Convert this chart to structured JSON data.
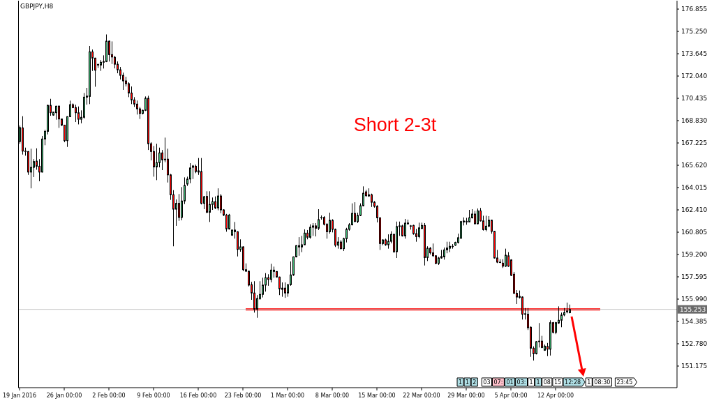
{
  "chart_data": {
    "type": "candlestick",
    "title": "GBPJPY,H8",
    "categories": [
      "19 Jan 2016",
      null,
      null,
      null,
      null,
      null,
      null,
      null,
      null,
      null,
      null,
      null,
      null,
      null,
      null,
      null,
      "26 Jan 00:00",
      null,
      null,
      null,
      null,
      null,
      null,
      null,
      null,
      null,
      null,
      null,
      null,
      null,
      null,
      null,
      "2 Feb 00:00",
      null,
      null,
      null,
      null,
      null,
      null,
      null,
      null,
      null,
      null,
      null,
      null,
      null,
      null,
      null,
      "9 Feb 00:00",
      null,
      null,
      null,
      null,
      null,
      null,
      null,
      null,
      null,
      null,
      null,
      null,
      null,
      null,
      null,
      "16 Feb 00:00",
      null,
      null,
      null,
      null,
      null,
      null,
      null,
      null,
      null,
      null,
      null,
      null,
      null,
      null,
      null,
      "23 Feb 00:00",
      null,
      null,
      null,
      null,
      null,
      null,
      null,
      null,
      null,
      null,
      null,
      null,
      null,
      null,
      null,
      "1 Mar 00:00",
      null,
      null,
      null,
      null,
      null,
      null,
      null,
      null,
      null,
      null,
      null,
      null,
      null,
      null,
      null,
      "8 Mar 00:00",
      null,
      null,
      null,
      null,
      null,
      null,
      null,
      null,
      null,
      null,
      null,
      null,
      null,
      null,
      null,
      "15 Mar 00:00",
      null,
      null,
      null,
      null,
      null,
      null,
      null,
      null,
      null,
      null,
      null,
      null,
      null,
      null,
      null,
      "22 Mar 00:00",
      null,
      null,
      null,
      null,
      null,
      null,
      null,
      null,
      null,
      null,
      null,
      null,
      null,
      null,
      null,
      "29 Mar 00:00",
      null,
      null,
      null,
      null,
      null,
      null,
      null,
      null,
      null,
      null,
      null,
      null,
      null,
      null,
      null,
      "5 Apr 00:00",
      null,
      null,
      null,
      null,
      null,
      null,
      null,
      null,
      null,
      null,
      null,
      null,
      null,
      null,
      null,
      "12 Apr 00:00",
      null,
      null,
      null,
      null,
      null,
      null,
      null,
      null,
      null,
      null,
      null,
      null,
      null,
      null,
      null,
      null,
      null,
      null,
      null,
      null,
      null,
      null,
      null,
      null,
      null,
      null,
      null,
      null,
      null,
      null,
      null,
      null,
      null,
      null,
      null,
      null,
      null,
      null,
      null,
      null,
      null,
      null,
      null
    ],
    "ohlc": [
      [
        167.33,
        168.48,
        167.17,
        168.33
      ],
      [
        168.31,
        169.15,
        166.39,
        166.64
      ],
      [
        166.64,
        166.89,
        166.31,
        166.61
      ],
      [
        166.61,
        166.64,
        164.93,
        165.13
      ],
      [
        165.13,
        166.81,
        163.96,
        165.47
      ],
      [
        165.47,
        166.06,
        164.77,
        165.89
      ],
      [
        165.92,
        166.84,
        165.3,
        165.55
      ],
      [
        165.55,
        166.06,
        164.47,
        165.13
      ],
      [
        165.13,
        167.73,
        165.1,
        167.51
      ],
      [
        167.51,
        168.18,
        167.06,
        168.06
      ],
      [
        168.06,
        169.98,
        167.84,
        169.93
      ],
      [
        169.93,
        170.4,
        169.18,
        169.4
      ],
      [
        169.23,
        169.48,
        169.18,
        169.45
      ],
      [
        169.4,
        169.9,
        168.9,
        169.87
      ],
      [
        169.87,
        169.93,
        168.31,
        168.95
      ],
      [
        168.95,
        168.98,
        168.44,
        168.51
      ],
      [
        168.51,
        168.53,
        167.28,
        167.39
      ],
      [
        167.39,
        169.14,
        166.94,
        169.12
      ],
      [
        169.12,
        170.27,
        169.08,
        169.98
      ],
      [
        169.98,
        170.07,
        169.73,
        169.77
      ],
      [
        169.77,
        169.98,
        168.73,
        169.4
      ],
      [
        169.4,
        169.85,
        168.56,
        168.93
      ],
      [
        168.93,
        169.57,
        168.64,
        169.07
      ],
      [
        169.07,
        170.82,
        168.98,
        170.52
      ],
      [
        170.52,
        171.19,
        169.98,
        170.6
      ],
      [
        170.57,
        174.2,
        170.02,
        173.78
      ],
      [
        173.78,
        173.95,
        172.41,
        173.33
      ],
      [
        173.33,
        173.36,
        171.27,
        172.46
      ],
      [
        172.88,
        172.91,
        172.63,
        172.83
      ],
      [
        172.83,
        173.19,
        172.41,
        173.03
      ],
      [
        173.03,
        173.53,
        172.58,
        173.08
      ],
      [
        173.08,
        175.03,
        173.04,
        174.55
      ],
      [
        174.55,
        174.6,
        173.08,
        173.58
      ],
      [
        173.58,
        174.53,
        172.91,
        173.41
      ],
      [
        173.39,
        173.49,
        172.59,
        172.89
      ],
      [
        172.89,
        173.09,
        172.24,
        172.49
      ],
      [
        172.49,
        172.69,
        171.79,
        172.09
      ],
      [
        172.09,
        172.29,
        171.04,
        171.69
      ],
      [
        171.69,
        171.99,
        171.29,
        171.49
      ],
      [
        171.49,
        171.59,
        170.52,
        170.82
      ],
      [
        170.82,
        171.29,
        170.02,
        170.32
      ],
      [
        170.32,
        170.52,
        169.82,
        170.02
      ],
      [
        170.02,
        170.28,
        169.27,
        169.68
      ],
      [
        169.68,
        169.82,
        168.95,
        169.35
      ],
      [
        169.35,
        169.62,
        169.28,
        169.57
      ],
      [
        169.57,
        170.57,
        169.52,
        170.44
      ],
      [
        170.44,
        170.62,
        166.72,
        167.17
      ],
      [
        167.17,
        167.28,
        165.97,
        166.61
      ],
      [
        166.61,
        167.01,
        164.8,
        165.5
      ],
      [
        165.5,
        167.17,
        164.55,
        165.81
      ],
      [
        165.81,
        166.89,
        165.47,
        166.51
      ],
      [
        166.51,
        166.72,
        165.27,
        166.01
      ],
      [
        166.06,
        167.61,
        165.84,
        166.01
      ],
      [
        166.06,
        166.81,
        164.38,
        164.93
      ],
      [
        164.93,
        165.0,
        163.13,
        163.5
      ],
      [
        163.5,
        163.83,
        159.79,
        162.46
      ],
      [
        162.46,
        163.16,
        161.26,
        162.88
      ],
      [
        162.88,
        163.55,
        161.62,
        161.87
      ],
      [
        161.87,
        164.05,
        161.66,
        163.05
      ],
      [
        163.05,
        164.75,
        162.83,
        164.17
      ],
      [
        164.27,
        164.8,
        164.13,
        164.63
      ],
      [
        164.63,
        165.77,
        164.33,
        165.43
      ],
      [
        165.47,
        165.64,
        164.63,
        165.57
      ],
      [
        165.55,
        165.67,
        165.05,
        165.17
      ],
      [
        165.22,
        166.14,
        164.93,
        165.13
      ],
      [
        165.17,
        166.14,
        162.8,
        162.88
      ],
      [
        162.88,
        163.41,
        162.46,
        163.36
      ],
      [
        163.38,
        163.75,
        162.17,
        162.24
      ],
      [
        162.24,
        163.75,
        161.54,
        162.8
      ],
      [
        162.8,
        163.3,
        162.41,
        163.0
      ],
      [
        163.0,
        163.38,
        162.46,
        162.55
      ],
      [
        162.55,
        163.96,
        162.38,
        163.41
      ],
      [
        163.41,
        163.55,
        162.17,
        162.41
      ],
      [
        162.41,
        162.46,
        161.96,
        162.04
      ],
      [
        162.04,
        162.12,
        160.84,
        161.04
      ],
      [
        161.04,
        162.12,
        160.99,
        162.04
      ],
      [
        160.59,
        160.99,
        160.54,
        160.96
      ],
      [
        160.96,
        161.54,
        160.34,
        160.84
      ],
      [
        160.84,
        160.87,
        159.06,
        159.57
      ],
      [
        159.57,
        160.29,
        159.4,
        159.75
      ],
      [
        159.75,
        159.79,
        158.0,
        158.11
      ],
      [
        158.11,
        158.56,
        157.95,
        158.0
      ],
      [
        158.0,
        158.03,
        156.9,
        157.0
      ],
      [
        157.03,
        157.23,
        155.94,
        156.43
      ],
      [
        156.43,
        157.28,
        155.02,
        155.27
      ],
      [
        155.27,
        156.28,
        154.65,
        156.03
      ],
      [
        156.03,
        157.28,
        155.94,
        156.33
      ],
      [
        156.33,
        157.53,
        156.11,
        157.0
      ],
      [
        157.0,
        157.86,
        156.53,
        157.53
      ],
      [
        157.53,
        157.78,
        156.95,
        157.41
      ],
      [
        157.41,
        158.53,
        157.19,
        158.08
      ],
      [
        158.08,
        158.33,
        157.53,
        157.98
      ],
      [
        157.98,
        158.0,
        157.53,
        157.58
      ],
      [
        157.58,
        157.61,
        156.28,
        156.73
      ],
      [
        156.78,
        157.19,
        156.16,
        156.69
      ],
      [
        156.78,
        157.19,
        156.08,
        156.43
      ],
      [
        156.43,
        157.06,
        156.16,
        157.03
      ],
      [
        157.03,
        158.7,
        156.95,
        157.73
      ],
      [
        157.73,
        159.06,
        157.66,
        159.03
      ],
      [
        159.03,
        159.87,
        158.99,
        159.84
      ],
      [
        159.84,
        160.45,
        159.11,
        159.74
      ],
      [
        159.74,
        160.54,
        159.37,
        159.9
      ],
      [
        159.9,
        161.01,
        159.87,
        160.74
      ],
      [
        160.74,
        160.96,
        160.29,
        160.44
      ],
      [
        160.44,
        161.37,
        160.34,
        161.16
      ],
      [
        161.16,
        161.46,
        160.54,
        161.26
      ],
      [
        161.26,
        161.46,
        160.5,
        161.09
      ],
      [
        161.09,
        162.46,
        160.96,
        161.71
      ],
      [
        161.87,
        162.01,
        161.71,
        161.87
      ],
      [
        161.87,
        161.96,
        161.29,
        161.37
      ],
      [
        161.37,
        161.46,
        160.34,
        160.84
      ],
      [
        160.84,
        162.21,
        160.7,
        161.66
      ],
      [
        161.66,
        161.74,
        160.79,
        161.01
      ],
      [
        161.01,
        161.07,
        159.74,
        159.87
      ],
      [
        159.87,
        160.45,
        159.62,
        160.1
      ],
      [
        160.1,
        160.24,
        159.57,
        159.62
      ],
      [
        159.62,
        160.41,
        159.45,
        160.34
      ],
      [
        160.34,
        161.12,
        160.07,
        161.01
      ],
      [
        161.01,
        161.46,
        160.91,
        161.34
      ],
      [
        161.34,
        162.88,
        161.29,
        162.16
      ],
      [
        162.16,
        162.96,
        161.54,
        161.57
      ],
      [
        161.57,
        162.21,
        161.46,
        162.01
      ],
      [
        162.01,
        162.88,
        161.96,
        162.71
      ],
      [
        162.71,
        164.1,
        162.66,
        163.61
      ],
      [
        163.71,
        163.85,
        163.35,
        163.43
      ],
      [
        163.5,
        163.96,
        163.35,
        163.41
      ],
      [
        163.5,
        163.58,
        162.62,
        162.96
      ],
      [
        162.96,
        163.05,
        162.57,
        162.67
      ],
      [
        162.67,
        162.75,
        161.51,
        161.84
      ],
      [
        161.84,
        161.87,
        159.53,
        159.99
      ],
      [
        159.99,
        160.29,
        159.87,
        160.25
      ],
      [
        160.25,
        160.34,
        159.82,
        159.9
      ],
      [
        159.9,
        160.65,
        159.62,
        160.15
      ],
      [
        160.15,
        160.87,
        160.0,
        160.65
      ],
      [
        160.65,
        160.68,
        159.32,
        159.4
      ],
      [
        159.4,
        161.57,
        158.95,
        161.21
      ],
      [
        161.21,
        161.57,
        160.54,
        161.26
      ],
      [
        161.26,
        161.34,
        160.49,
        160.54
      ],
      [
        160.54,
        161.76,
        160.34,
        161.46
      ],
      [
        161.41,
        161.71,
        161.34,
        161.47
      ],
      [
        161.26,
        161.32,
        160.99,
        161.24
      ],
      [
        161.29,
        161.34,
        160.62,
        160.7
      ],
      [
        160.7,
        161.04,
        160.12,
        160.49
      ],
      [
        160.49,
        161.49,
        160.37,
        161.12
      ],
      [
        161.07,
        161.49,
        161.04,
        161.29
      ],
      [
        161.29,
        161.46,
        158.41,
        158.98
      ],
      [
        158.98,
        159.79,
        158.73,
        159.65
      ],
      [
        159.65,
        159.74,
        159.2,
        159.32
      ],
      [
        159.32,
        159.99,
        159.03,
        159.11
      ],
      [
        159.11,
        159.15,
        158.5,
        158.56
      ],
      [
        158.56,
        159.03,
        158.45,
        158.95
      ],
      [
        158.95,
        159.53,
        158.9,
        159.06
      ],
      [
        159.03,
        159.7,
        158.83,
        159.53
      ],
      [
        159.53,
        160.12,
        159.29,
        159.67
      ],
      [
        159.65,
        160.12,
        159.37,
        159.79
      ],
      [
        159.79,
        159.95,
        159.62,
        159.79
      ],
      [
        159.87,
        160.12,
        159.82,
        160.07
      ],
      [
        160.07,
        160.7,
        159.99,
        160.41
      ],
      [
        160.37,
        161.62,
        160.34,
        161.57
      ],
      [
        161.54,
        161.87,
        161.29,
        161.61
      ],
      [
        161.54,
        161.84,
        161.34,
        161.59
      ],
      [
        161.54,
        162.41,
        161.51,
        161.84
      ],
      [
        161.84,
        162.46,
        161.79,
        162.11
      ],
      [
        162.11,
        162.34,
        161.37,
        161.41
      ],
      [
        161.41,
        162.51,
        161.37,
        162.34
      ],
      [
        162.34,
        162.55,
        161.57,
        161.62
      ],
      [
        161.62,
        161.99,
        160.92,
        160.99
      ],
      [
        160.99,
        161.99,
        160.87,
        161.24
      ],
      [
        161.24,
        161.96,
        161.16,
        161.67
      ],
      [
        161.67,
        161.71,
        160.7,
        160.87
      ],
      [
        160.87,
        160.9,
        158.91,
        158.95
      ],
      [
        158.95,
        159.53,
        158.58,
        158.65
      ],
      [
        158.65,
        158.86,
        158.58,
        158.63
      ],
      [
        158.58,
        158.86,
        158.23,
        158.36
      ],
      [
        158.36,
        159.62,
        158.31,
        159.15
      ],
      [
        159.11,
        159.37,
        158.31,
        158.36
      ],
      [
        158.81,
        158.86,
        157.65,
        157.7
      ],
      [
        157.78,
        157.95,
        156.36,
        156.41
      ],
      [
        156.41,
        156.64,
        155.64,
        156.14
      ],
      [
        156.19,
        156.61,
        156.03,
        156.11
      ],
      [
        156.14,
        156.19,
        154.52,
        154.9
      ],
      [
        154.9,
        155.35,
        154.52,
        154.94
      ],
      [
        154.9,
        155.35,
        153.77,
        153.93
      ],
      [
        153.97,
        154.02,
        151.84,
        152.46
      ],
      [
        152.46,
        152.59,
        151.57,
        152.06
      ],
      [
        152.06,
        152.97,
        152.01,
        152.93
      ],
      [
        152.93,
        154.27,
        152.51,
        152.97
      ],
      [
        152.97,
        153.35,
        152.46,
        152.51
      ],
      [
        152.31,
        152.72,
        152.27,
        152.61
      ],
      [
        152.59,
        152.84,
        151.89,
        152.39
      ],
      [
        152.39,
        154.47,
        151.93,
        154.3
      ],
      [
        154.3,
        154.35,
        153.52,
        153.6
      ],
      [
        153.6,
        154.35,
        153.47,
        154.3
      ],
      [
        154.27,
        155.47,
        154.2,
        154.47
      ],
      [
        154.47,
        155.02,
        153.97,
        154.85
      ],
      [
        154.85,
        155.35,
        154.76,
        155.02
      ],
      [
        155.07,
        155.74,
        154.97,
        155.14
      ],
      [
        155.02,
        155.6,
        154.97,
        155.25
      ],
      null,
      null,
      null,
      null,
      null,
      null,
      null,
      null,
      null,
      null,
      null,
      null,
      null,
      null,
      null,
      null,
      null,
      null,
      null,
      null,
      null,
      null,
      null,
      null,
      null,
      null,
      null,
      null,
      null,
      null,
      null,
      null,
      null,
      null,
      null,
      null,
      null,
      null
    ],
    "colors": [
      "#3cb371",
      "#ff0000",
      "#ff0000",
      "#ff0000",
      "#3cb371",
      "#3cb371",
      "#ff0000",
      "#ff0000",
      "#3cb371",
      "#3cb371",
      "#3cb371",
      "#ff0000",
      "#3cb371",
      "#3cb371",
      "#ff0000",
      "#ff0000",
      "#ff0000",
      "#3cb371",
      "#3cb371",
      "#ff0000",
      "#ff0000",
      "#ff0000",
      "#3cb371",
      "#3cb371",
      "#3cb371",
      "#3cb371",
      "#ff0000",
      "#ff0000",
      "#ff0000",
      "#3cb371",
      "#3cb371",
      "#3cb371",
      "#ff0000",
      "#ff0000",
      "#ff0000",
      "#ff0000",
      "#ff0000",
      "#ff0000",
      "#ff0000",
      "#ff0000",
      "#ff0000",
      "#ff0000",
      "#ff0000",
      "#ff0000",
      "#3cb371",
      "#3cb371",
      "#ff0000",
      "#ff0000",
      "#ff0000",
      "#3cb371",
      "#3cb371",
      "#ff0000",
      "#ff0000",
      "#ff0000",
      "#ff0000",
      "#ff0000",
      "#3cb371",
      "#ff0000",
      "#3cb371",
      "#3cb371",
      "#3cb371",
      "#3cb371",
      "#3cb371",
      "#ff0000",
      "#ff0000",
      "#ff0000",
      "#3cb371",
      "#ff0000",
      "#3cb371",
      "#3cb371",
      "#ff0000",
      "#3cb371",
      "#ff0000",
      "#ff0000",
      "#ff0000",
      "#3cb371",
      "#3cb371",
      "#ff0000",
      "#ff0000",
      "#3cb371",
      "#ff0000",
      "#ff0000",
      "#ff0000",
      "#ff0000",
      "#ff0000",
      "#3cb371",
      "#3cb371",
      "#3cb371",
      "#3cb371",
      "#ff0000",
      "#3cb371",
      "#ff0000",
      "#ff0000",
      "#ff0000",
      "#ff0000",
      "#ff0000",
      "#3cb371",
      "#3cb371",
      "#3cb371",
      "#3cb371",
      "#ff0000",
      "#3cb371",
      "#3cb371",
      "#ff0000",
      "#3cb371",
      "#3cb371",
      "#ff0000",
      "#3cb371",
      "#3cb371",
      "#ff0000",
      "#ff0000",
      "#3cb371",
      "#ff0000",
      "#ff0000",
      "#3cb371",
      "#ff0000",
      "#3cb371",
      "#3cb371",
      "#3cb371",
      "#3cb371",
      "#ff0000",
      "#3cb371",
      "#3cb371",
      "#3cb371",
      "#ff0000",
      "#ff0000",
      "#ff0000",
      "#ff0000",
      "#ff0000",
      "#ff0000",
      "#3cb371",
      "#ff0000",
      "#3cb371",
      "#3cb371",
      "#ff0000",
      "#3cb371",
      "#3cb371",
      "#ff0000",
      "#3cb371",
      "#3cb371",
      "#ff0000",
      "#ff0000",
      "#ff0000",
      "#3cb371",
      "#3cb371",
      "#ff0000",
      "#3cb371",
      "#ff0000",
      "#ff0000",
      "#ff0000",
      "#3cb371",
      "#3cb371",
      "#3cb371",
      "#3cb371",
      "#3cb371",
      "#3cb371",
      "#3cb371",
      "#3cb371",
      "#3cb371",
      "#3cb371",
      "#3cb371",
      "#3cb371",
      "#3cb371",
      "#ff0000",
      "#3cb371",
      "#ff0000",
      "#ff0000",
      "#3cb371",
      "#3cb371",
      "#ff0000",
      "#ff0000",
      "#ff0000",
      "#ff0000",
      "#ff0000",
      "#3cb371",
      "#ff0000",
      "#ff0000",
      "#ff0000",
      "#ff0000",
      "#ff0000",
      "#ff0000",
      "#3cb371",
      "#ff0000",
      "#ff0000",
      "#ff0000",
      "#3cb371",
      "#3cb371",
      "#ff0000",
      "#3cb371",
      "#ff0000",
      "#3cb371",
      "#ff0000",
      "#3cb371",
      "#3cb371",
      "#3cb371",
      "#3cb371",
      "#3cb371",
      "#3cb371",
      null,
      null,
      null,
      null,
      null,
      null,
      null,
      null,
      null,
      null,
      null,
      null,
      null,
      null,
      null,
      null,
      null,
      null,
      null,
      null,
      null,
      null,
      null,
      null,
      null,
      null,
      null,
      null,
      null,
      null,
      null,
      null,
      null,
      null,
      null,
      null,
      null,
      null
    ],
    "series": [
      {
        "type": "line",
        "color": "#ff0000",
        "values": [
          null,
          null,
          null,
          null,
          null,
          null,
          null,
          null,
          null,
          null,
          null,
          null,
          null,
          null,
          null,
          null,
          null,
          null,
          null,
          null,
          null,
          null,
          null,
          null,
          null,
          null,
          null,
          null,
          null,
          null,
          null,
          null,
          null,
          null,
          null,
          null,
          null,
          null,
          null,
          null,
          null,
          null,
          null,
          null,
          null,
          null,
          null,
          null,
          null,
          null,
          null,
          null,
          null,
          null,
          null,
          null,
          null,
          null,
          null,
          null,
          null,
          null,
          null,
          null,
          null,
          null,
          null,
          null,
          null,
          null,
          null,
          null,
          null,
          null,
          null,
          null,
          null,
          null,
          null,
          null,
          null,
          155.25,
          155.25,
          155.25,
          155.25,
          155.25,
          155.25,
          155.25,
          155.25,
          155.25,
          155.25,
          155.25,
          155.25,
          155.25,
          155.25,
          155.25,
          155.25,
          155.25,
          155.25,
          155.25,
          155.25,
          155.25,
          155.25,
          155.25,
          155.25,
          155.25,
          155.25,
          155.25,
          155.25,
          155.25,
          155.25,
          155.25,
          155.25,
          155.25,
          155.25,
          155.25,
          155.25,
          155.25,
          155.25,
          155.25,
          155.25,
          155.25,
          155.25,
          155.25,
          155.25,
          155.25,
          155.25,
          155.25,
          155.25,
          155.25,
          155.25,
          155.25,
          155.25,
          155.25,
          155.25,
          155.25,
          155.25,
          155.25,
          155.25,
          155.25,
          155.25,
          155.25,
          155.25,
          155.25,
          155.25,
          155.25,
          155.25,
          155.25,
          155.25,
          155.25,
          155.25,
          155.25,
          155.25,
          155.25,
          155.25,
          155.25,
          155.25,
          155.25,
          155.25,
          155.25,
          155.25,
          155.25,
          155.25,
          155.25,
          155.25,
          155.25,
          155.25,
          155.25,
          155.25,
          155.25,
          155.25,
          155.25,
          155.25,
          155.25,
          155.25,
          155.25,
          155.25,
          155.25,
          155.25,
          155.25,
          155.25,
          155.25,
          155.25,
          155.25,
          155.25,
          155.25,
          155.25,
          155.25,
          155.25,
          155.25,
          155.25,
          155.25,
          155.25,
          155.25,
          155.25,
          155.25,
          155.25,
          155.25,
          155.25,
          155.25,
          155.25,
          155.25,
          155.25,
          155.25,
          155.25,
          155.25,
          155.25,
          155.25,
          155.25,
          null,
          null,
          null,
          null,
          null,
          null,
          null,
          null,
          null,
          null,
          null,
          null,
          null,
          null,
          null,
          null,
          null,
          null,
          null,
          null,
          null,
          null,
          null,
          null,
          null,
          null,
          null
        ]
      }
    ],
    "ylim": [
      149.62,
      177.46
    ],
    "yticks": [
      151.175,
      {
        "value": 152.78,
        "label": "152.780"
      },
      154.385,
      {
        "value": 155.99,
        "label": "155.990"
      },
      157.595,
      {
        "value": 159.2,
        "label": "159.200"
      },
      160.805,
      {
        "value": 162.41,
        "label": "162.410"
      },
      164.015,
      {
        "value": 165.62,
        "label": "165.620"
      },
      167.225,
      {
        "value": 168.83,
        "label": "168.830"
      },
      170.435,
      {
        "value": 172.04,
        "label": "172.040"
      },
      173.645,
      {
        "value": 175.25,
        "label": "175.250"
      },
      176.855
    ],
    "ref_lines": [
      {
        "axis": "y",
        "value": 155.253,
        "label": "155.253",
        "color": "#c0c0c0"
      }
    ],
    "annotations": [
      "Short 2-3t",
      "1",
      "1",
      "2",
      "03",
      "07:",
      "01",
      "03:",
      "1",
      "1",
      "08",
      "15",
      "12:28",
      "1",
      "08:30",
      "23:45"
    ]
  }
}
